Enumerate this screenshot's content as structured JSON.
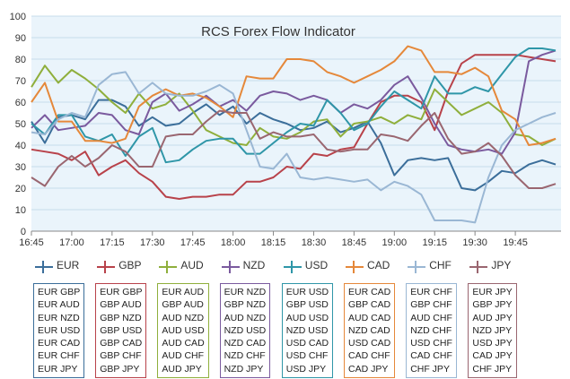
{
  "chart_data": {
    "type": "line",
    "title": "RCS Forex Flow Indicator",
    "xlabel": "",
    "ylabel": "",
    "ylim": [
      0,
      100
    ],
    "yticks": [
      0,
      10,
      20,
      30,
      40,
      50,
      60,
      70,
      80,
      90,
      100
    ],
    "xlim": [
      0,
      138
    ],
    "xticks": [
      0,
      15,
      30,
      45,
      60,
      75,
      90,
      105,
      120,
      135
    ],
    "x_tick_labels": [
      "16:45",
      "17:00",
      "17:15",
      "17:30",
      "17:45",
      "18:00",
      "18:15",
      "18:30",
      "18:45",
      "19:00",
      "19:15",
      "19:30",
      "19:45"
    ],
    "x_tick_minutes": [
      0,
      15,
      30,
      45,
      60,
      75,
      90,
      105,
      120,
      135,
      150,
      165,
      180
    ],
    "x_minutes": [
      0,
      5,
      10,
      15,
      20,
      25,
      30,
      35,
      40,
      45,
      50,
      55,
      60,
      65,
      70,
      75,
      80,
      85,
      90,
      95,
      100,
      105,
      110,
      115,
      120,
      125,
      130,
      135,
      140,
      145,
      150,
      155,
      160,
      165,
      170,
      175,
      180,
      185,
      190,
      195
    ],
    "grid": true,
    "background_plot": "#eaf4fb",
    "series": [
      {
        "name": "EUR",
        "color": "#3b6e9a",
        "values": [
          51,
          41,
          53,
          54,
          52,
          61,
          61,
          58,
          49,
          53,
          49,
          50,
          55,
          59,
          54,
          58,
          50,
          55,
          52,
          50,
          47,
          48,
          51,
          46,
          48,
          51,
          41,
          26,
          33,
          34,
          33,
          34,
          20,
          19,
          23,
          28,
          27,
          31,
          33,
          31
        ]
      },
      {
        "name": "GBP",
        "color": "#b8424a",
        "values": [
          38,
          37,
          36,
          33,
          37,
          26,
          30,
          33,
          27,
          23,
          16,
          15,
          16,
          16,
          17,
          17,
          23,
          23,
          25,
          30,
          29,
          36,
          35,
          38,
          39,
          50,
          60,
          63,
          63,
          60,
          47,
          65,
          78,
          82,
          82,
          82,
          82,
          81,
          80,
          79
        ]
      },
      {
        "name": "AUD",
        "color": "#8faf3c",
        "values": [
          67,
          77,
          69,
          75,
          71,
          66,
          60,
          55,
          64,
          57,
          59,
          64,
          56,
          47,
          44,
          41,
          40,
          48,
          44,
          43,
          46,
          51,
          52,
          44,
          50,
          51,
          53,
          50,
          54,
          52,
          66,
          60,
          54,
          57,
          60,
          55,
          45,
          44,
          40,
          43
        ]
      },
      {
        "name": "NZD",
        "color": "#7a5a9e",
        "values": [
          48,
          54,
          47,
          48,
          49,
          55,
          54,
          47,
          45,
          60,
          64,
          56,
          59,
          63,
          58,
          61,
          56,
          63,
          65,
          64,
          61,
          63,
          61,
          55,
          59,
          57,
          61,
          68,
          72,
          62,
          50,
          40,
          38,
          37,
          38,
          36,
          46,
          79,
          82,
          84
        ]
      },
      {
        "name": "USD",
        "color": "#2f96a8",
        "values": [
          50,
          45,
          54,
          54,
          44,
          42,
          45,
          35,
          44,
          48,
          32,
          33,
          38,
          42,
          43,
          43,
          36,
          36,
          41,
          46,
          50,
          49,
          61,
          55,
          47,
          50,
          58,
          65,
          61,
          57,
          72,
          64,
          64,
          67,
          65,
          73,
          81,
          85,
          85,
          84
        ]
      },
      {
        "name": "CAD",
        "color": "#e5883a",
        "values": [
          60,
          69,
          51,
          51,
          42,
          42,
          41,
          43,
          58,
          63,
          66,
          63,
          64,
          62,
          58,
          53,
          72,
          71,
          71,
          80,
          80,
          79,
          74,
          72,
          69,
          72,
          75,
          79,
          86,
          84,
          74,
          74,
          73,
          76,
          72,
          56,
          52,
          40,
          41,
          43
        ]
      },
      {
        "name": "CHF",
        "color": "#9ab7d4",
        "values": [
          46,
          45,
          52,
          55,
          53,
          68,
          73,
          74,
          64,
          69,
          64,
          63,
          63,
          65,
          68,
          64,
          47,
          30,
          29,
          36,
          25,
          24,
          25,
          24,
          23,
          24,
          19,
          23,
          21,
          17,
          5,
          5,
          5,
          4,
          25,
          40,
          47,
          50,
          53,
          55
        ]
      },
      {
        "name": "JPY",
        "color": "#9a6670",
        "values": [
          25,
          21,
          30,
          35,
          30,
          34,
          40,
          37,
          30,
          30,
          44,
          45,
          45,
          51,
          56,
          55,
          55,
          43,
          46,
          44,
          44,
          45,
          38,
          37,
          38,
          38,
          45,
          44,
          42,
          49,
          55,
          43,
          36,
          37,
          41,
          35,
          26,
          20,
          20,
          22
        ]
      }
    ]
  },
  "legend": [
    {
      "name": "EUR",
      "color": "#3b6e9a",
      "pairs": [
        "EUR GBP",
        "EUR AUD",
        "EUR NZD",
        "EUR USD",
        "EUR CAD",
        "EUR CHF",
        "EUR JPY"
      ]
    },
    {
      "name": "GBP",
      "color": "#b8424a",
      "pairs": [
        "EUR GBP",
        "GBP AUD",
        "GBP NZD",
        "GBP USD",
        "GBP CAD",
        "GBP CHF",
        "GBP JPY"
      ]
    },
    {
      "name": "AUD",
      "color": "#8faf3c",
      "pairs": [
        "EUR AUD",
        "GBP AUD",
        "AUD NZD",
        "AUD USD",
        "AUD CAD",
        "AUD CHF",
        "AUD JPY"
      ]
    },
    {
      "name": "NZD",
      "color": "#7a5a9e",
      "pairs": [
        "EUR NZD",
        "GBP NZD",
        "AUD NZD",
        "NZD USD",
        "NZD CAD",
        "NZD CHF",
        "NZD JPY"
      ]
    },
    {
      "name": "USD",
      "color": "#2f96a8",
      "pairs": [
        "EUR USD",
        "GBP USD",
        "AUD USD",
        "NZD USD",
        "USD CAD",
        "USD CHF",
        "USD JPY"
      ]
    },
    {
      "name": "CAD",
      "color": "#e5883a",
      "pairs": [
        "EUR CAD",
        "GBP CAD",
        "AUD CAD",
        "NZD CAD",
        "USD CAD",
        "CAD CHF",
        "CAD JPY"
      ]
    },
    {
      "name": "CHF",
      "color": "#9ab7d4",
      "pairs": [
        "EUR CHF",
        "GBP CHF",
        "AUD CHF",
        "NZD CHF",
        "USD CHF",
        "CAD CHF",
        "CHF JPY"
      ]
    },
    {
      "name": "JPY",
      "color": "#9a6670",
      "pairs": [
        "EUR JPY",
        "GBP JPY",
        "AUD JPY",
        "NZD JPY",
        "USD JPY",
        "CAD JPY",
        "CHF JPY"
      ]
    }
  ]
}
